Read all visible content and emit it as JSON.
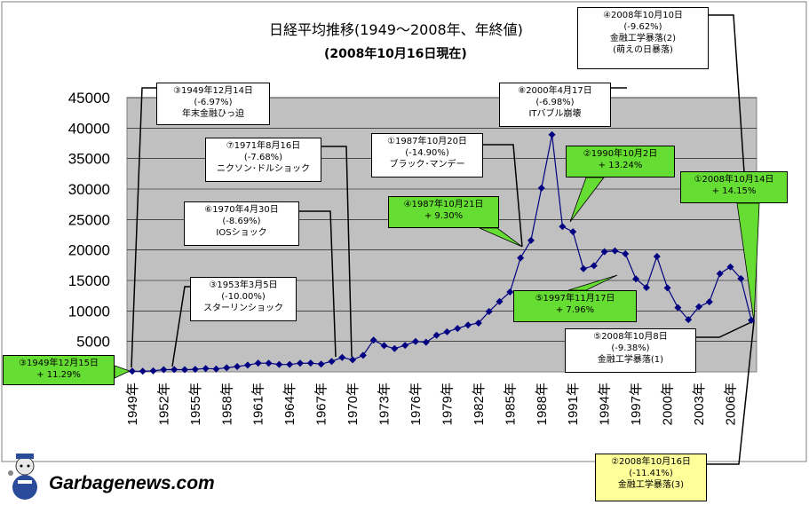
{
  "chart_data": {
    "type": "line",
    "title": "日経平均推移(1949～2008年、年終値)",
    "subtitle": "(2008年10月16日現在)",
    "ylim": [
      0,
      45000
    ],
    "yticks": [
      5000,
      10000,
      15000,
      20000,
      25000,
      30000,
      35000,
      40000,
      45000
    ],
    "xticks": [
      "1949年",
      "1952年",
      "1955年",
      "1958年",
      "1961年",
      "1964年",
      "1967年",
      "1970年",
      "1973年",
      "1976年",
      "1979年",
      "1982年",
      "1985年",
      "1988年",
      "1991年",
      "1994年",
      "1997年",
      "2000年",
      "2003年",
      "2006年"
    ],
    "years": [
      1949,
      1950,
      1951,
      1952,
      1953,
      1954,
      1955,
      1956,
      1957,
      1958,
      1959,
      1960,
      1961,
      1962,
      1963,
      1964,
      1965,
      1966,
      1967,
      1968,
      1969,
      1970,
      1971,
      1972,
      1973,
      1974,
      1975,
      1976,
      1977,
      1978,
      1979,
      1980,
      1981,
      1982,
      1983,
      1984,
      1985,
      1986,
      1987,
      1988,
      1989,
      1990,
      1991,
      1992,
      1993,
      1994,
      1995,
      1996,
      1997,
      1998,
      1999,
      2000,
      2001,
      2002,
      2003,
      2004,
      2005,
      2006,
      2007,
      2008
    ],
    "values": [
      109,
      101,
      166,
      362,
      377,
      356,
      425,
      549,
      475,
      666,
      874,
      1117,
      1432,
      1420,
      1225,
      1216,
      1417,
      1430,
      1283,
      1714,
      2359,
      1987,
      2714,
      5208,
      4306,
      3817,
      4359,
      4991,
      4866,
      6002,
      6570,
      7116,
      7682,
      8017,
      9894,
      11543,
      13113,
      18701,
      21564,
      30159,
      38916,
      23849,
      22984,
      16925,
      17417,
      19723,
      19868,
      19361,
      15259,
      13842,
      18934,
      13786,
      10543,
      8579,
      10677,
      11489,
      16111,
      17226,
      15308,
      8458
    ],
    "series_name": "",
    "annotations": [
      {
        "id": "a1",
        "lines": [
          "③1949年12月14日",
          "(-6.97%)",
          "年末金融ひっ迫"
        ],
        "style": "white"
      },
      {
        "id": "a2",
        "lines": [
          "③1949年12月15日",
          "+ 11.29%"
        ],
        "style": "green"
      },
      {
        "id": "a3",
        "lines": [
          "③1953年3月5日",
          "(-10.00%)",
          "スターリンショック"
        ],
        "style": "white"
      },
      {
        "id": "a4",
        "lines": [
          "⑦1971年8月16日",
          "(-7.68%)",
          "ニクソン･ドルショック"
        ],
        "style": "white"
      },
      {
        "id": "a5",
        "lines": [
          "⑥1970年4月30日",
          "(-8.69%)",
          "IOSショック"
        ],
        "style": "white"
      },
      {
        "id": "a6",
        "lines": [
          "①1987年10月20日",
          "(-14.90%)",
          "ブラック･マンデー"
        ],
        "style": "white"
      },
      {
        "id": "a7",
        "lines": [
          "④1987年10月21日",
          "+ 9.30%"
        ],
        "style": "green"
      },
      {
        "id": "a8",
        "lines": [
          "⑧2000年4月17日",
          "(-6.98%)",
          "ITバブル崩壊"
        ],
        "style": "white"
      },
      {
        "id": "a9",
        "lines": [
          "②1990年10月2日",
          "+ 13.24%"
        ],
        "style": "green"
      },
      {
        "id": "a10",
        "lines": [
          "⑤1997年11月17日",
          "+ 7.96%"
        ],
        "style": "green"
      },
      {
        "id": "a11",
        "lines": [
          "④2008年10月10日",
          "(-9.62%)",
          "金融工学暴落(2)",
          "(萌えの日暴落)"
        ],
        "style": "white"
      },
      {
        "id": "a12",
        "lines": [
          "①2008年10月14日",
          "+ 14.15%"
        ],
        "style": "green"
      },
      {
        "id": "a13",
        "lines": [
          "⑤2008年10月8日",
          "(-9.38%)",
          "金融工学暴落(1)"
        ],
        "style": "white"
      },
      {
        "id": "a14",
        "lines": [
          "②2008年10月16日",
          "(-11.41%)",
          "金融工学暴落(3)"
        ],
        "style": "yellow"
      }
    ]
  },
  "colors": {
    "plot_bg": "#c0c0c0",
    "line": "#000080",
    "green": "#66dd33",
    "yellow": "#ffff99"
  },
  "footer": {
    "brand": "Garbagenews.com"
  }
}
